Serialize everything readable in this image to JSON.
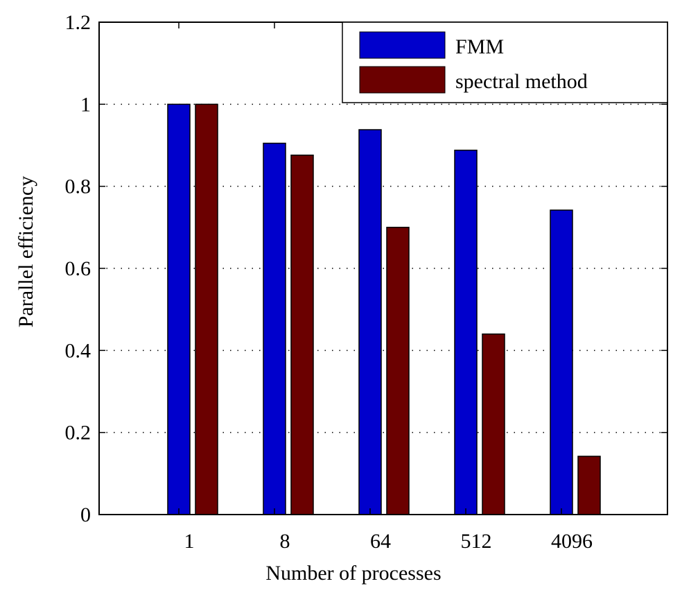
{
  "chart_data": {
    "type": "bar",
    "title": "",
    "xlabel": "Number of processes",
    "ylabel": "Parallel efficiency",
    "categories": [
      "1",
      "8",
      "64",
      "512",
      "4096"
    ],
    "ylim": [
      0,
      1.2
    ],
    "yticks": [
      "0",
      "0.2",
      "0.4",
      "0.6",
      "0.8",
      "1",
      "1.2"
    ],
    "grid": "horizontal dotted",
    "legend_position": "top-right",
    "series": [
      {
        "name": "FMM",
        "color": "#0000cc",
        "values": [
          1.0,
          0.905,
          0.938,
          0.888,
          0.742
        ]
      },
      {
        "name": "spectral method",
        "color": "#6b0000",
        "values": [
          1.0,
          0.876,
          0.7,
          0.44,
          0.142
        ]
      }
    ]
  }
}
